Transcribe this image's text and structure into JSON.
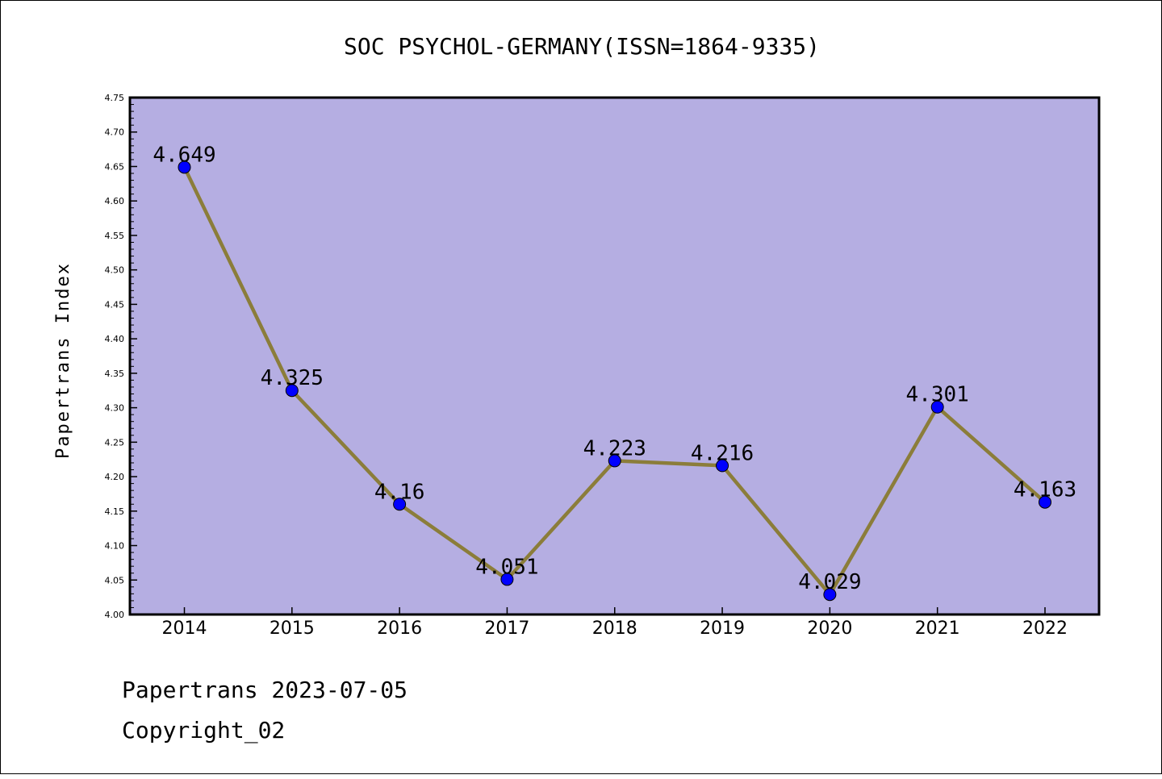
{
  "chart_data": {
    "type": "line",
    "title": "SOC PSYCHOL-GERMANY(ISSN=1864-9335)",
    "xlabel": "",
    "ylabel": "Papertrans Index",
    "categories": [
      "2014",
      "2015",
      "2016",
      "2017",
      "2018",
      "2019",
      "2020",
      "2021",
      "2022"
    ],
    "series": [
      {
        "values": [
          4.649,
          4.325,
          4.16,
          4.051,
          4.223,
          4.216,
          4.029,
          4.301,
          4.163
        ],
        "data_labels": [
          "4.649",
          "4.325",
          "4.16",
          "4.051",
          "4.223",
          "4.216",
          "4.029",
          "4.301",
          "4.163"
        ]
      }
    ],
    "ylim": [
      4.0,
      4.75
    ],
    "yticks": [
      "4.00",
      "4.05",
      "4.10",
      "4.15",
      "4.20",
      "4.25",
      "4.30",
      "4.35",
      "4.40",
      "4.45",
      "4.50",
      "4.55",
      "4.60",
      "4.65",
      "4.70",
      "4.75"
    ],
    "grid": false,
    "legend": "none",
    "colors": {
      "plot_background": "#b5aee2",
      "line": "#8b7d3a",
      "marker": "#0000ff"
    }
  },
  "footer": {
    "line1": "Papertrans 2023-07-05",
    "line2": "Copyright_02"
  }
}
